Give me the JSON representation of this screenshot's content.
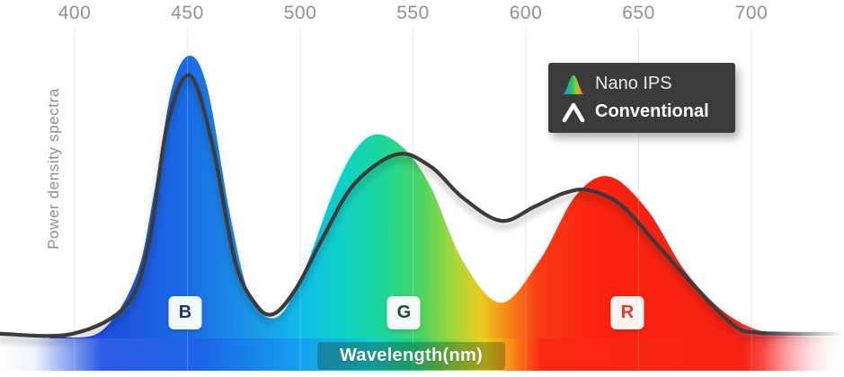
{
  "y_axis": {
    "label": "Power density spectra"
  },
  "x_axis": {
    "label": "Wavelength(nm)",
    "unit": "nm",
    "ticks": [
      400,
      450,
      500,
      550,
      600,
      650,
      700
    ]
  },
  "legend": {
    "items": [
      {
        "label": "Nano IPS",
        "icon": "nano-spectrum-peak-icon"
      },
      {
        "label": "Conventional",
        "icon": "caret-peak-icon"
      }
    ]
  },
  "band_labels": [
    {
      "label": "B",
      "nm": 449,
      "text_color": "#1c3566"
    },
    {
      "label": "G",
      "nm": 546,
      "text_color": "#25463c"
    },
    {
      "label": "R",
      "nm": 645,
      "text_color": "#e8362a"
    }
  ],
  "colors": {
    "conventional_line": "#3b3b3b",
    "legend_bg": "#3b3b3b",
    "grid": "#e4e4e4",
    "tick_text": "#919191",
    "axis_label_text": "#8e8e8e",
    "spectrum_blue": "#1a6ce6",
    "spectrum_green": "#1ed795",
    "spectrum_yellow": "#ecca1e",
    "spectrum_red": "#fa2310"
  },
  "chart_data": {
    "type": "area",
    "title": "",
    "xlabel": "Wavelength(nm)",
    "ylabel": "Power density spectra",
    "xlim": [
      367,
      741
    ],
    "ylim": [
      0,
      1.05
    ],
    "grid": "vertical",
    "legend_position": "top-right",
    "series": [
      {
        "name": "Nano IPS",
        "style": "area-spectrum-gradient",
        "peaks_nm": {
          "blue": 451,
          "green": 534,
          "red": 637
        },
        "points": [
          [
            389,
            0.003
          ],
          [
            411,
            0.015
          ],
          [
            427,
            0.21
          ],
          [
            435,
            0.5
          ],
          [
            443,
            0.88
          ],
          [
            451,
            1.0
          ],
          [
            459,
            0.88
          ],
          [
            469,
            0.43
          ],
          [
            478,
            0.14
          ],
          [
            490,
            0.07
          ],
          [
            502,
            0.24
          ],
          [
            514,
            0.5
          ],
          [
            524,
            0.66
          ],
          [
            534,
            0.72
          ],
          [
            546,
            0.67
          ],
          [
            558,
            0.53
          ],
          [
            572,
            0.27
          ],
          [
            589,
            0.12
          ],
          [
            606,
            0.27
          ],
          [
            622,
            0.5
          ],
          [
            637,
            0.57
          ],
          [
            654,
            0.45
          ],
          [
            670,
            0.24
          ],
          [
            686,
            0.1
          ],
          [
            702,
            0.026
          ],
          [
            718,
            0.01
          ],
          [
            741,
            0.003
          ]
        ]
      },
      {
        "name": "Conventional",
        "style": "line",
        "color": "#3b3b3b",
        "peaks_nm": {
          "blue": 451,
          "green": 543,
          "red": 628
        },
        "points": [
          [
            367,
            0.01
          ],
          [
            399,
            0.01
          ],
          [
            423,
            0.112
          ],
          [
            433,
            0.335
          ],
          [
            441,
            0.751
          ],
          [
            451,
            0.93
          ],
          [
            461,
            0.687
          ],
          [
            471,
            0.272
          ],
          [
            480,
            0.118
          ],
          [
            488,
            0.08
          ],
          [
            498,
            0.169
          ],
          [
            510,
            0.351
          ],
          [
            524,
            0.543
          ],
          [
            543,
            0.649
          ],
          [
            558,
            0.604
          ],
          [
            572,
            0.495
          ],
          [
            589,
            0.412
          ],
          [
            604,
            0.463
          ],
          [
            617,
            0.511
          ],
          [
            628,
            0.521
          ],
          [
            642,
            0.47
          ],
          [
            658,
            0.329
          ],
          [
            676,
            0.169
          ],
          [
            692,
            0.042
          ],
          [
            704,
            0.013
          ],
          [
            741,
            0.01
          ]
        ]
      }
    ]
  }
}
